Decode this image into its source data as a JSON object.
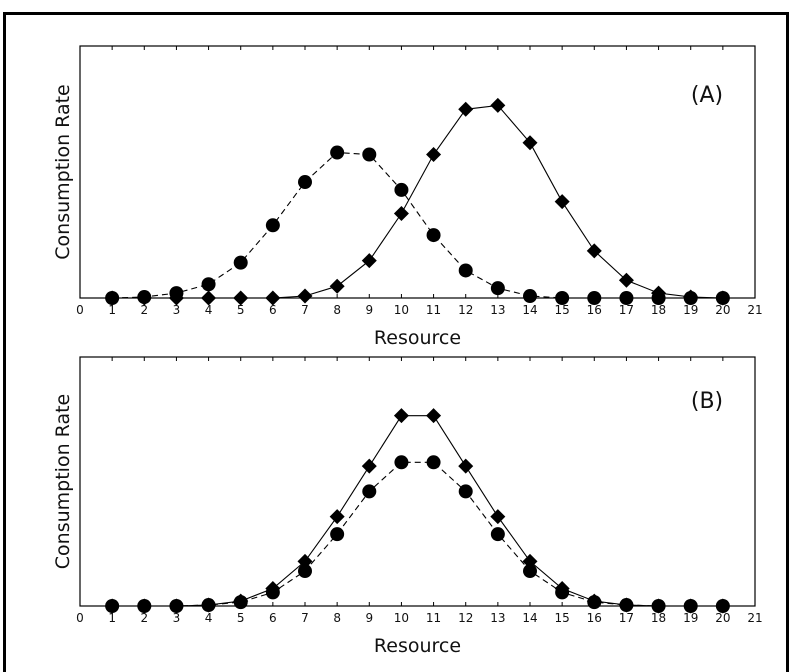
{
  "chart_data": [
    {
      "type": "line",
      "panel_label": "(A)",
      "xlabel": "Resource",
      "ylabel": "Consumption Rate",
      "xlim": [
        0,
        21
      ],
      "ylim": [
        0,
        1
      ],
      "x_ticks": [
        0,
        1,
        2,
        3,
        4,
        5,
        6,
        7,
        8,
        9,
        10,
        11,
        12,
        13,
        14,
        15,
        16,
        17,
        18,
        19,
        20,
        21
      ],
      "grid": false,
      "legend": "none",
      "series": [
        {
          "marker": "circle",
          "line_style": "dashed",
          "color": "#000000",
          "x": [
            1,
            2,
            3,
            4,
            5,
            6,
            7,
            8,
            9,
            10,
            11,
            12,
            13,
            14,
            15,
            16,
            17,
            18,
            19,
            20
          ],
          "values": [
            0.0,
            0.005,
            0.025,
            0.07,
            0.18,
            0.37,
            0.59,
            0.74,
            0.73,
            0.55,
            0.32,
            0.14,
            0.05,
            0.01,
            0.0,
            0.0,
            0.0,
            0.0,
            0.0,
            0.0
          ]
        },
        {
          "marker": "diamond",
          "line_style": "solid",
          "color": "#000000",
          "x": [
            1,
            2,
            3,
            4,
            5,
            6,
            7,
            8,
            9,
            10,
            11,
            12,
            13,
            14,
            15,
            16,
            17,
            18,
            19,
            20
          ],
          "values": [
            0.0,
            0.0,
            0.0,
            0.0,
            0.0,
            0.0,
            0.01,
            0.06,
            0.19,
            0.43,
            0.73,
            0.96,
            0.98,
            0.79,
            0.49,
            0.24,
            0.09,
            0.025,
            0.005,
            0.0
          ]
        }
      ]
    },
    {
      "type": "line",
      "panel_label": "(B)",
      "xlabel": "Resource",
      "ylabel": "Consumption Rate",
      "xlim": [
        0,
        21
      ],
      "ylim": [
        0,
        1
      ],
      "x_ticks": [
        0,
        1,
        2,
        3,
        4,
        5,
        6,
        7,
        8,
        9,
        10,
        11,
        12,
        13,
        14,
        15,
        16,
        17,
        18,
        19,
        20,
        21
      ],
      "grid": false,
      "legend": "none",
      "series": [
        {
          "marker": "circle",
          "line_style": "dashed",
          "color": "#000000",
          "x": [
            1,
            2,
            3,
            4,
            5,
            6,
            7,
            8,
            9,
            10,
            11,
            12,
            13,
            14,
            15,
            16,
            17,
            18,
            19,
            20
          ],
          "values": [
            0.0,
            0.0,
            0.0,
            0.005,
            0.02,
            0.07,
            0.18,
            0.37,
            0.59,
            0.74,
            0.74,
            0.59,
            0.37,
            0.18,
            0.07,
            0.02,
            0.005,
            0.0,
            0.0,
            0.0
          ]
        },
        {
          "marker": "diamond",
          "line_style": "solid",
          "color": "#000000",
          "x": [
            1,
            2,
            3,
            4,
            5,
            6,
            7,
            8,
            9,
            10,
            11,
            12,
            13,
            14,
            15,
            16,
            17,
            18,
            19,
            20
          ],
          "values": [
            0.0,
            0.0,
            0.0,
            0.005,
            0.025,
            0.09,
            0.23,
            0.46,
            0.72,
            0.98,
            0.98,
            0.72,
            0.46,
            0.23,
            0.09,
            0.025,
            0.005,
            0.0,
            0.0,
            0.0
          ]
        }
      ]
    }
  ]
}
